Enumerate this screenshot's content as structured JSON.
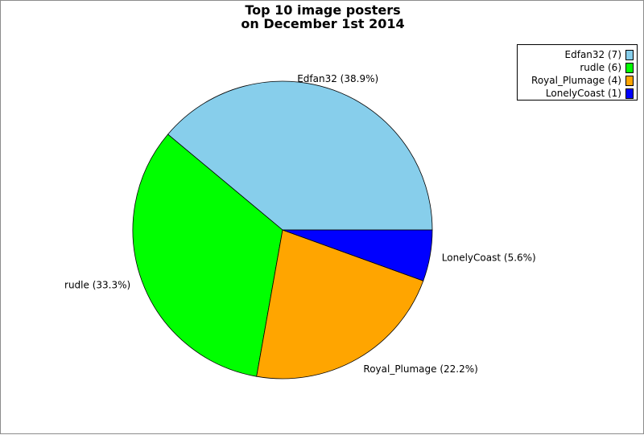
{
  "chart_data": {
    "type": "pie",
    "title": [
      "Top 10 image posters",
      "on December 1st 2014"
    ],
    "slices": [
      {
        "label": "Edfan32",
        "count": 7,
        "percent": 38.9,
        "color": "#87ceeb",
        "legend_text": "Edfan32 (7)",
        "slice_label": "Edfan32 (38.9%)"
      },
      {
        "label": "rudle",
        "count": 6,
        "percent": 33.3,
        "color": "#00ff00",
        "legend_text": "rudle (6)",
        "slice_label": "rudle (33.3%)"
      },
      {
        "label": "Royal_Plumage",
        "count": 4,
        "percent": 22.2,
        "color": "#ffa500",
        "legend_text": "Royal_Plumage (4)",
        "slice_label": "Royal_Plumage (22.2%)"
      },
      {
        "label": "LonelyCoast",
        "count": 1,
        "percent": 5.6,
        "color": "#0000ff",
        "legend_text": "LonelyCoast (1)",
        "slice_label": "LonelyCoast (5.6%)"
      }
    ],
    "legend_position": "top-right"
  }
}
